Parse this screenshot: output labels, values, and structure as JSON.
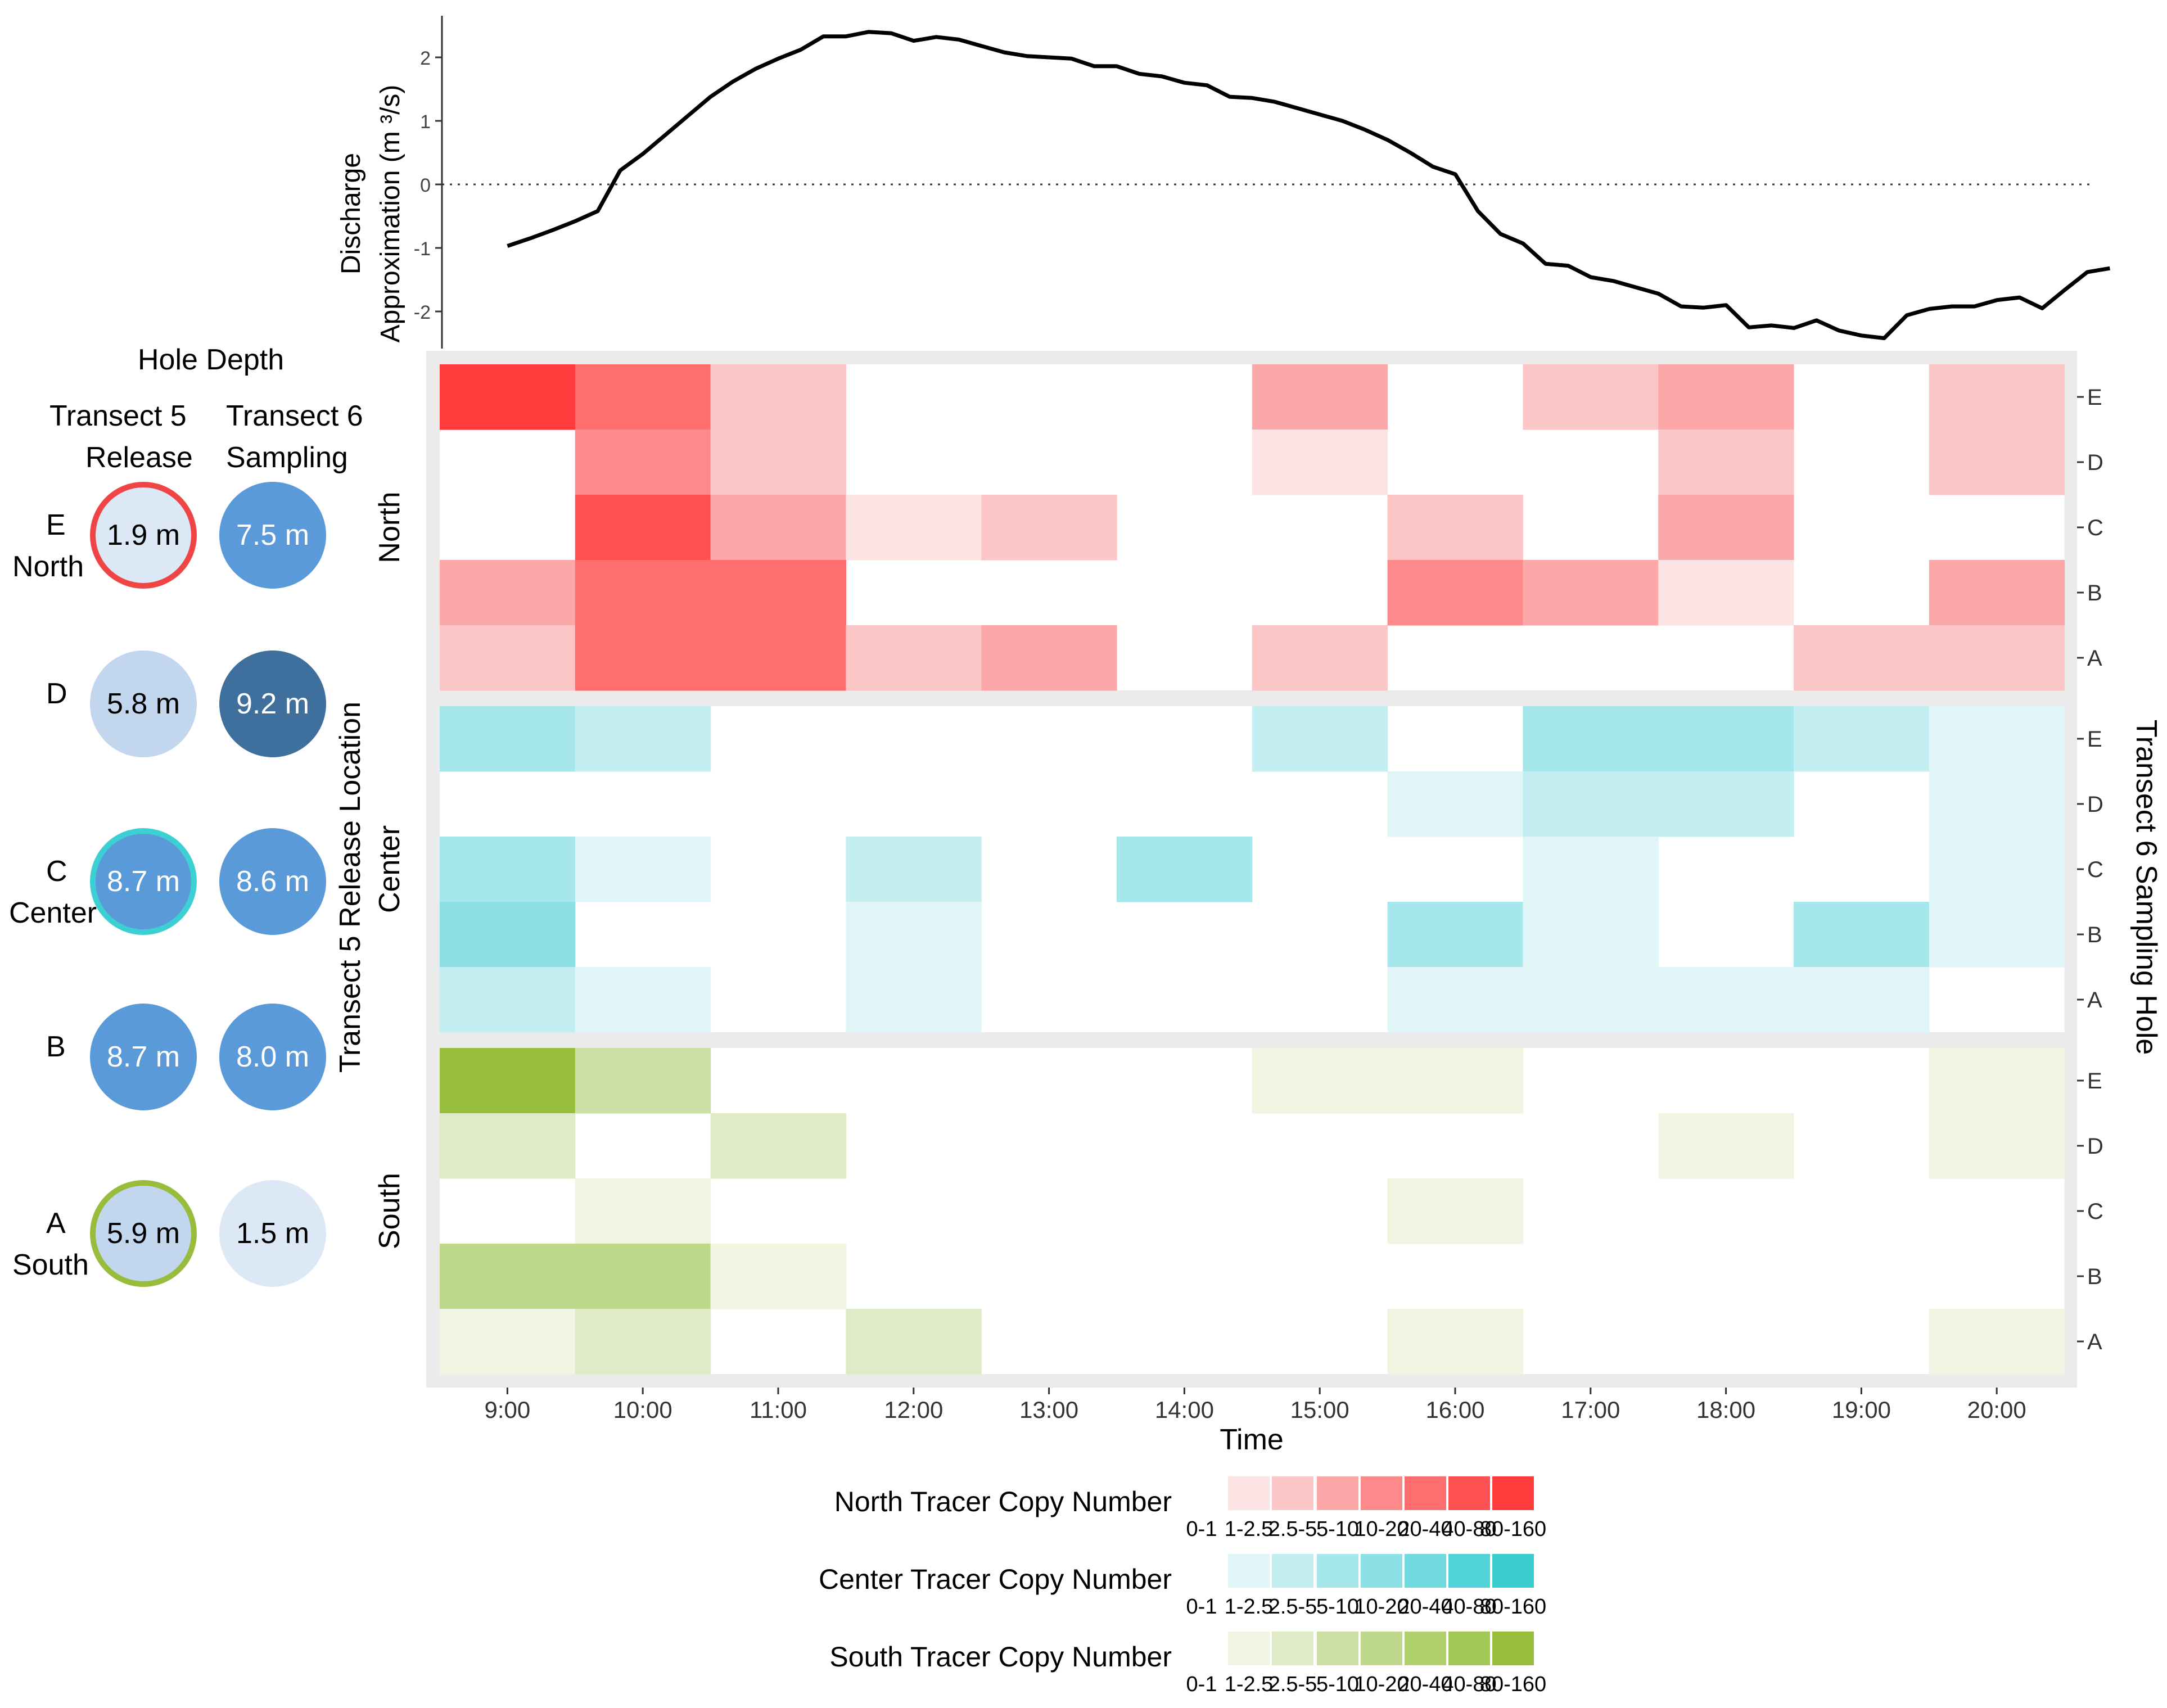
{
  "chart_data": {
    "type": "heatmap",
    "discharge": {
      "ylabel_line1": "Discharge",
      "ylabel_line2": "Approximation (m ³/s)",
      "yticks": [
        "2",
        "1",
        "0",
        "-1",
        "-2"
      ],
      "ylim": [
        -2.5,
        2.5
      ],
      "x_start": 9.0,
      "x_step": 0.1667,
      "values": [
        -0.97,
        -0.85,
        -0.72,
        -0.58,
        -0.42,
        0.22,
        0.48,
        0.78,
        1.08,
        1.38,
        1.62,
        1.82,
        1.98,
        2.12,
        2.33,
        2.33,
        2.4,
        2.38,
        2.26,
        2.32,
        2.28,
        2.18,
        2.08,
        2.02,
        2.0,
        1.98,
        1.86,
        1.86,
        1.74,
        1.7,
        1.6,
        1.56,
        1.38,
        1.36,
        1.3,
        1.2,
        1.1,
        1.0,
        0.86,
        0.7,
        0.5,
        0.28,
        0.16,
        -0.42,
        -0.78,
        -0.93,
        -1.25,
        -1.28,
        -1.46,
        -1.52,
        -1.62,
        -1.72,
        -1.92,
        -1.94,
        -1.9,
        -2.25,
        -2.22,
        -2.26,
        -2.14,
        -2.3,
        -2.38,
        -2.42,
        -2.06,
        -1.96,
        -1.92,
        -1.92,
        -1.82,
        -1.78,
        -1.95,
        -1.66,
        -1.38,
        -1.32
      ]
    },
    "heat": {
      "x_categories": [
        "9:00",
        "10:00",
        "11:00",
        "12:00",
        "13:00",
        "14:00",
        "15:00",
        "16:00",
        "17:00",
        "18:00",
        "19:00",
        "20:00"
      ],
      "y_categories": [
        "A",
        "B",
        "C",
        "D",
        "E"
      ],
      "xlabel": "Time",
      "ylabel_left": "Transect 5 Release Location",
      "ylabel_right": "Transect 6 Sampling Hole",
      "panels": [
        {
          "name": "North",
          "colors": [
            "#ffffff",
            "#fde4e4",
            "#fdc6c6",
            "#fda8a8",
            "#fd8a8a",
            "#fe6e6e",
            "#fe5050",
            "#ff3b3b"
          ],
          "rows": {
            "E": [
              7,
              5,
              2,
              0,
              0,
              0,
              3,
              0,
              2,
              3,
              0,
              2
            ],
            "D": [
              0,
              4,
              2,
              0,
              0,
              0,
              1,
              0,
              0,
              2,
              0,
              2
            ],
            "C": [
              0,
              6,
              3,
              1,
              2,
              0,
              0,
              2,
              0,
              3,
              0,
              0
            ],
            "B": [
              3,
              5,
              5,
              0,
              0,
              0,
              0,
              4,
              3,
              1,
              0,
              3
            ],
            "A": [
              2,
              5,
              5,
              2,
              3,
              0,
              2,
              0,
              0,
              0,
              2,
              2
            ]
          }
        },
        {
          "name": "Center",
          "colors": [
            "#ffffff",
            "#e0f5f8",
            "#c3eef2",
            "#a6e7ec",
            "#8be1e6",
            "#70dadf",
            "#52d3d8",
            "#38cccf"
          ],
          "rows": {
            "E": [
              3,
              2,
              0,
              0,
              0,
              0,
              2,
              0,
              3,
              3,
              2,
              1
            ],
            "D": [
              0,
              0,
              0,
              0,
              0,
              0,
              0,
              1,
              2,
              2,
              0,
              1
            ],
            "C": [
              3,
              1,
              0,
              2,
              0,
              3,
              0,
              0,
              1,
              0,
              0,
              1
            ],
            "B": [
              4,
              0,
              0,
              1,
              0,
              0,
              0,
              3,
              1,
              0,
              3,
              1
            ],
            "A": [
              2,
              1,
              0,
              1,
              0,
              0,
              0,
              1,
              1,
              1,
              1,
              0
            ]
          }
        },
        {
          "name": "South",
          "colors": [
            "#ffffff",
            "#eff5e1",
            "#dfeac7",
            "#cde0a4",
            "#bfd98c",
            "#b0d16d",
            "#a2c955",
            "#96be3a"
          ],
          "rows": {
            "E": [
              7,
              3,
              0,
              0,
              0,
              0,
              1,
              1,
              0,
              0,
              0,
              1
            ],
            "D": [
              2,
              0,
              2,
              0,
              0,
              0,
              0,
              0,
              0,
              1,
              0,
              1
            ],
            "C": [
              0,
              1,
              0,
              0,
              0,
              0,
              0,
              1,
              0,
              0,
              0,
              0
            ],
            "B": [
              4,
              4,
              1,
              0,
              0,
              0,
              0,
              0,
              0,
              0,
              0,
              0
            ],
            "A": [
              1,
              2,
              0,
              2,
              0,
              0,
              0,
              1,
              0,
              0,
              0,
              1
            ]
          }
        }
      ]
    },
    "legend": {
      "bins": [
        "0-1",
        "1-2.5",
        "2.5-5",
        "5-10",
        "10-20",
        "20-40",
        "40-80",
        "80-160"
      ],
      "titles": [
        "North Tracer Copy Number",
        "Center Tracer Copy Number",
        "South Tracer Copy Number"
      ]
    }
  },
  "hole_depth": {
    "title": "Hole Depth",
    "col1_line1": "Transect 5",
    "col1_line2": "Release",
    "col2_line1": "Transect 6",
    "col2_line2": "Sampling",
    "rows": [
      {
        "letter": "E",
        "sub": "North",
        "t5": "1.9 m",
        "t6": "7.5 m",
        "t5_fill": "#dde8f6",
        "t6_fill": "#5a9ad8",
        "t5_ring": "#f04545",
        "t5_text": "#000000",
        "t6_text": "#ffffff"
      },
      {
        "letter": "D",
        "sub": "",
        "t5": "5.8 m",
        "t6": "9.2 m",
        "t5_fill": "#c2d6ee",
        "t6_fill": "#3f6f9c",
        "t5_ring": "",
        "t5_text": "#000000",
        "t6_text": "#ffffff"
      },
      {
        "letter": "C",
        "sub": "Center",
        "t5": "8.7 m",
        "t6": "8.6 m",
        "t5_fill": "#5a9ad8",
        "t6_fill": "#5a9ad8",
        "t5_ring": "#3ccfd4",
        "t5_text": "#ffffff",
        "t6_text": "#ffffff"
      },
      {
        "letter": "B",
        "sub": "",
        "t5": "8.7 m",
        "t6": "8.0 m",
        "t5_fill": "#5a9ad8",
        "t6_fill": "#5a9ad8",
        "t5_ring": "",
        "t5_text": "#ffffff",
        "t6_text": "#ffffff"
      },
      {
        "letter": "A",
        "sub": "South",
        "t5": "5.9 m",
        "t6": "1.5 m",
        "t5_fill": "#c2d6ee",
        "t6_fill": "#dde8f6",
        "t5_ring": "#98bd3d",
        "t5_text": "#000000",
        "t6_text": "#000000"
      }
    ]
  }
}
